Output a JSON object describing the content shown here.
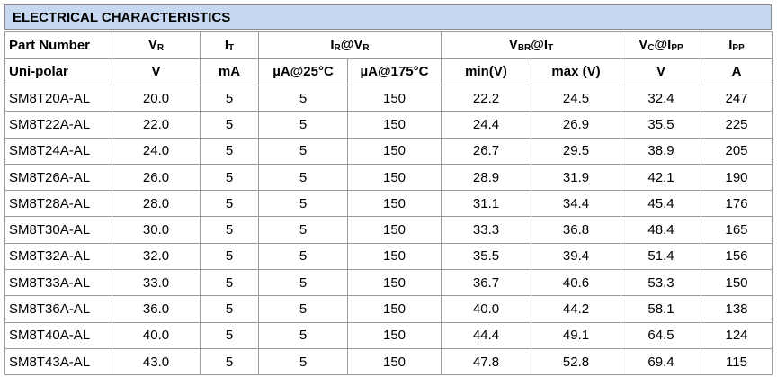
{
  "header": {
    "title": "ELECTRICAL CHARACTERISTICS"
  },
  "table": {
    "header_row_1": [
      [
        "Part Number"
      ],
      [
        "V",
        "R"
      ],
      [
        "I",
        "T"
      ],
      [
        "I",
        "R",
        "@V",
        "R"
      ],
      [
        "V",
        "BR",
        "@I",
        "T"
      ],
      [
        "V",
        "C",
        "@I",
        "PP"
      ],
      [
        "I",
        "PP"
      ]
    ],
    "header_row_2": [
      "Uni-polar",
      "V",
      "mA",
      "µA@25°C",
      "µA@175°C",
      "min(V)",
      "max (V)",
      "V",
      "A"
    ],
    "rows": [
      [
        "SM8T20A-AL",
        "20.0",
        "5",
        "5",
        "150",
        "22.2",
        "24.5",
        "32.4",
        "247"
      ],
      [
        "SM8T22A-AL",
        "22.0",
        "5",
        "5",
        "150",
        "24.4",
        "26.9",
        "35.5",
        "225"
      ],
      [
        "SM8T24A-AL",
        "24.0",
        "5",
        "5",
        "150",
        "26.7",
        "29.5",
        "38.9",
        "205"
      ],
      [
        "SM8T26A-AL",
        "26.0",
        "5",
        "5",
        "150",
        "28.9",
        "31.9",
        "42.1",
        "190"
      ],
      [
        "SM8T28A-AL",
        "28.0",
        "5",
        "5",
        "150",
        "31.1",
        "34.4",
        "45.4",
        "176"
      ],
      [
        "SM8T30A-AL",
        "30.0",
        "5",
        "5",
        "150",
        "33.3",
        "36.8",
        "48.4",
        "165"
      ],
      [
        "SM8T32A-AL",
        "32.0",
        "5",
        "5",
        "150",
        "35.5",
        "39.4",
        "51.4",
        "156"
      ],
      [
        "SM8T33A-AL",
        "33.0",
        "5",
        "5",
        "150",
        "36.7",
        "40.6",
        "53.3",
        "150"
      ],
      [
        "SM8T36A-AL",
        "36.0",
        "5",
        "5",
        "150",
        "40.0",
        "44.2",
        "58.1",
        "138"
      ],
      [
        "SM8T40A-AL",
        "40.0",
        "5",
        "5",
        "150",
        "44.4",
        "49.1",
        "64.5",
        "124"
      ],
      [
        "SM8T43A-AL",
        "43.0",
        "5",
        "5",
        "150",
        "47.8",
        "52.8",
        "69.4",
        "115"
      ]
    ]
  }
}
